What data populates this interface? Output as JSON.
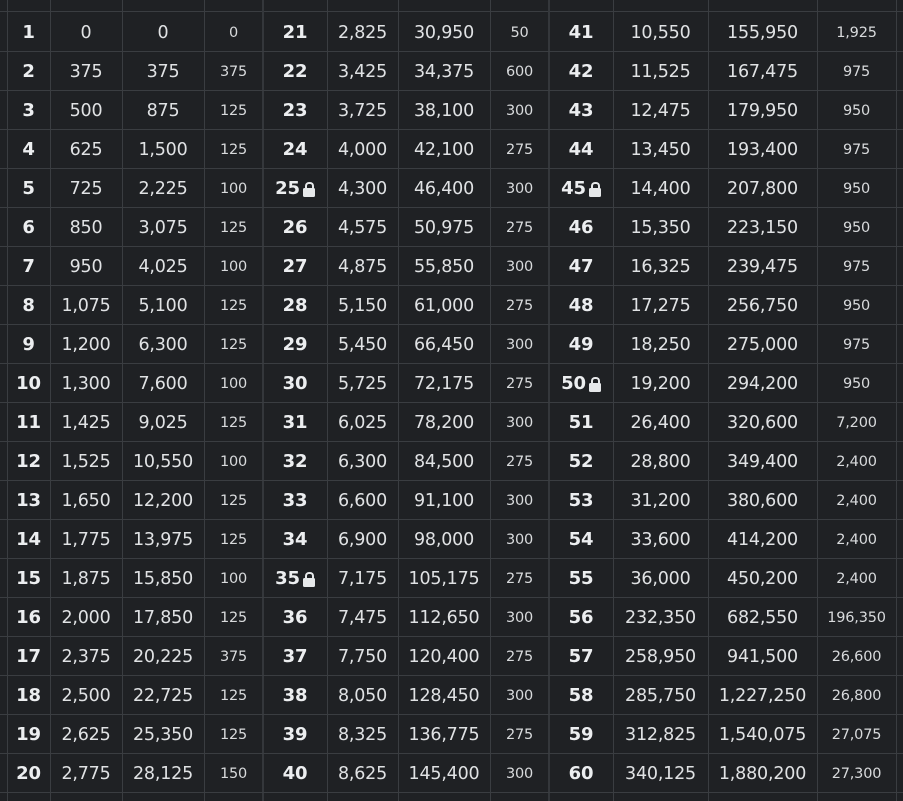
{
  "rows": [
    {
      "level": "1",
      "xp": "0",
      "total": "0",
      "diff": "0"
    },
    {
      "level": "2",
      "xp": "375",
      "total": "375",
      "diff": "375"
    },
    {
      "level": "3",
      "xp": "500",
      "total": "875",
      "diff": "125"
    },
    {
      "level": "4",
      "xp": "625",
      "total": "1,500",
      "diff": "125"
    },
    {
      "level": "5",
      "xp": "725",
      "total": "2,225",
      "diff": "100"
    },
    {
      "level": "6",
      "xp": "850",
      "total": "3,075",
      "diff": "125"
    },
    {
      "level": "7",
      "xp": "950",
      "total": "4,025",
      "diff": "100"
    },
    {
      "level": "8",
      "xp": "1,075",
      "total": "5,100",
      "diff": "125"
    },
    {
      "level": "9",
      "xp": "1,200",
      "total": "6,300",
      "diff": "125"
    },
    {
      "level": "10",
      "xp": "1,300",
      "total": "7,600",
      "diff": "100"
    },
    {
      "level": "11",
      "xp": "1,425",
      "total": "9,025",
      "diff": "125"
    },
    {
      "level": "12",
      "xp": "1,525",
      "total": "10,550",
      "diff": "100"
    },
    {
      "level": "13",
      "xp": "1,650",
      "total": "12,200",
      "diff": "125"
    },
    {
      "level": "14",
      "xp": "1,775",
      "total": "13,975",
      "diff": "125"
    },
    {
      "level": "15",
      "xp": "1,875",
      "total": "15,850",
      "diff": "100"
    },
    {
      "level": "16",
      "xp": "2,000",
      "total": "17,850",
      "diff": "125"
    },
    {
      "level": "17",
      "xp": "2,375",
      "total": "20,225",
      "diff": "375"
    },
    {
      "level": "18",
      "xp": "2,500",
      "total": "22,725",
      "diff": "125"
    },
    {
      "level": "19",
      "xp": "2,625",
      "total": "25,350",
      "diff": "125"
    },
    {
      "level": "20",
      "xp": "2,775",
      "total": "28,125",
      "diff": "150"
    },
    {
      "level": "21",
      "xp": "2,825",
      "total": "30,950",
      "diff": "50"
    },
    {
      "level": "22",
      "xp": "3,425",
      "total": "34,375",
      "diff": "600"
    },
    {
      "level": "23",
      "xp": "3,725",
      "total": "38,100",
      "diff": "300"
    },
    {
      "level": "24",
      "xp": "4,000",
      "total": "42,100",
      "diff": "275"
    },
    {
      "level": "25",
      "xp": "4,300",
      "total": "46,400",
      "diff": "300",
      "locked": true
    },
    {
      "level": "26",
      "xp": "4,575",
      "total": "50,975",
      "diff": "275"
    },
    {
      "level": "27",
      "xp": "4,875",
      "total": "55,850",
      "diff": "300"
    },
    {
      "level": "28",
      "xp": "5,150",
      "total": "61,000",
      "diff": "275"
    },
    {
      "level": "29",
      "xp": "5,450",
      "total": "66,450",
      "diff": "300"
    },
    {
      "level": "30",
      "xp": "5,725",
      "total": "72,175",
      "diff": "275"
    },
    {
      "level": "31",
      "xp": "6,025",
      "total": "78,200",
      "diff": "300"
    },
    {
      "level": "32",
      "xp": "6,300",
      "total": "84,500",
      "diff": "275"
    },
    {
      "level": "33",
      "xp": "6,600",
      "total": "91,100",
      "diff": "300"
    },
    {
      "level": "34",
      "xp": "6,900",
      "total": "98,000",
      "diff": "300"
    },
    {
      "level": "35",
      "xp": "7,175",
      "total": "105,175",
      "diff": "275",
      "locked": true
    },
    {
      "level": "36",
      "xp": "7,475",
      "total": "112,650",
      "diff": "300"
    },
    {
      "level": "37",
      "xp": "7,750",
      "total": "120,400",
      "diff": "275"
    },
    {
      "level": "38",
      "xp": "8,050",
      "total": "128,450",
      "diff": "300"
    },
    {
      "level": "39",
      "xp": "8,325",
      "total": "136,775",
      "diff": "275"
    },
    {
      "level": "40",
      "xp": "8,625",
      "total": "145,400",
      "diff": "300"
    },
    {
      "level": "41",
      "xp": "10,550",
      "total": "155,950",
      "diff": "1,925"
    },
    {
      "level": "42",
      "xp": "11,525",
      "total": "167,475",
      "diff": "975"
    },
    {
      "level": "43",
      "xp": "12,475",
      "total": "179,950",
      "diff": "950"
    },
    {
      "level": "44",
      "xp": "13,450",
      "total": "193,400",
      "diff": "975"
    },
    {
      "level": "45",
      "xp": "14,400",
      "total": "207,800",
      "diff": "950",
      "locked": true
    },
    {
      "level": "46",
      "xp": "15,350",
      "total": "223,150",
      "diff": "950"
    },
    {
      "level": "47",
      "xp": "16,325",
      "total": "239,475",
      "diff": "975"
    },
    {
      "level": "48",
      "xp": "17,275",
      "total": "256,750",
      "diff": "950"
    },
    {
      "level": "49",
      "xp": "18,250",
      "total": "275,000",
      "diff": "975"
    },
    {
      "level": "50",
      "xp": "19,200",
      "total": "294,200",
      "diff": "950",
      "locked": true
    },
    {
      "level": "51",
      "xp": "26,400",
      "total": "320,600",
      "diff": "7,200"
    },
    {
      "level": "52",
      "xp": "28,800",
      "total": "349,400",
      "diff": "2,400"
    },
    {
      "level": "53",
      "xp": "31,200",
      "total": "380,600",
      "diff": "2,400"
    },
    {
      "level": "54",
      "xp": "33,600",
      "total": "414,200",
      "diff": "2,400"
    },
    {
      "level": "55",
      "xp": "36,000",
      "total": "450,200",
      "diff": "2,400"
    },
    {
      "level": "56",
      "xp": "232,350",
      "total": "682,550",
      "diff": "196,350"
    },
    {
      "level": "57",
      "xp": "258,950",
      "total": "941,500",
      "diff": "26,600"
    },
    {
      "level": "58",
      "xp": "285,750",
      "total": "1,227,250",
      "diff": "26,800"
    },
    {
      "level": "59",
      "xp": "312,825",
      "total": "1,540,075",
      "diff": "27,075"
    },
    {
      "level": "60",
      "xp": "340,125",
      "total": "1,880,200",
      "diff": "27,300"
    }
  ],
  "icons": {
    "locked_level": "lock-icon"
  },
  "colors": {
    "background": "#1f2124",
    "grid": "#3a3d41",
    "text": "#e4e6e8"
  }
}
